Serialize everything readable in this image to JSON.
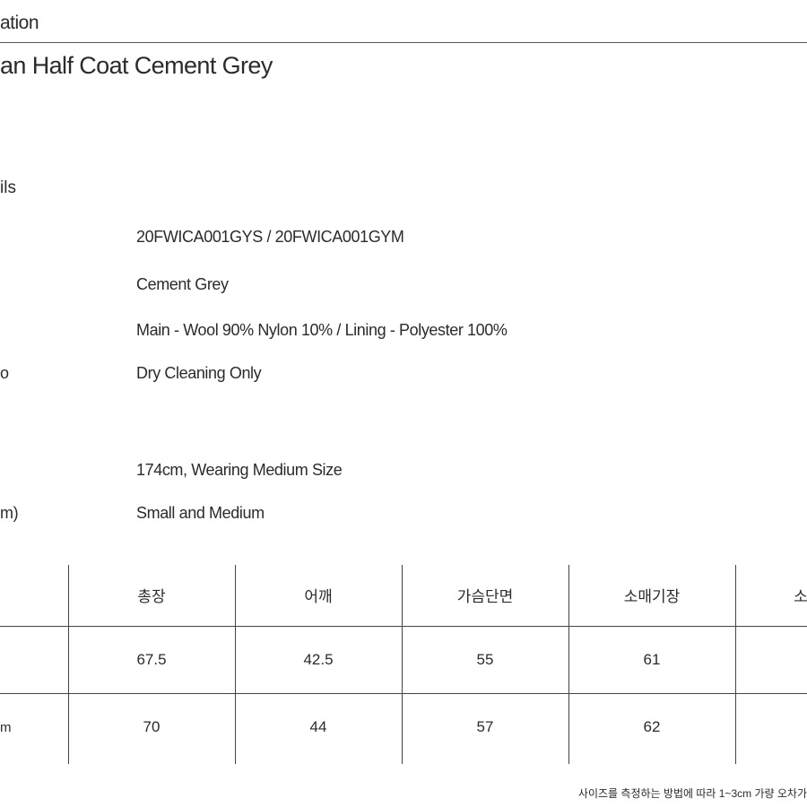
{
  "header": {
    "title": "ation"
  },
  "product_name": "an Half Coat Cement Grey",
  "section_title": "ils",
  "details": [
    {
      "value": "20FWICA001GYS / 20FWICA001GYM"
    },
    {
      "value": "Cement Grey"
    },
    {
      "value": "Main - Wool 90% Nylon 10% / Lining - Polyester 100%"
    },
    {
      "label": "o",
      "value": "Dry Cleaning Only"
    },
    {
      "value": "174cm, Wearing Medium Size"
    },
    {
      "label": "m)",
      "value": "Small and Medium"
    }
  ],
  "table": {
    "header": [
      "총장",
      "어깨",
      "가슴단면",
      "소매기장",
      "소"
    ],
    "rows": [
      {
        "cells": [
          "67.5",
          "42.5",
          "55",
          "61"
        ]
      },
      {
        "label": "m",
        "cells": [
          "70",
          "44",
          "57",
          "62"
        ]
      }
    ]
  },
  "note": "사이즈를 측정하는 방법에 따라 1~3cm 가량 오차가"
}
